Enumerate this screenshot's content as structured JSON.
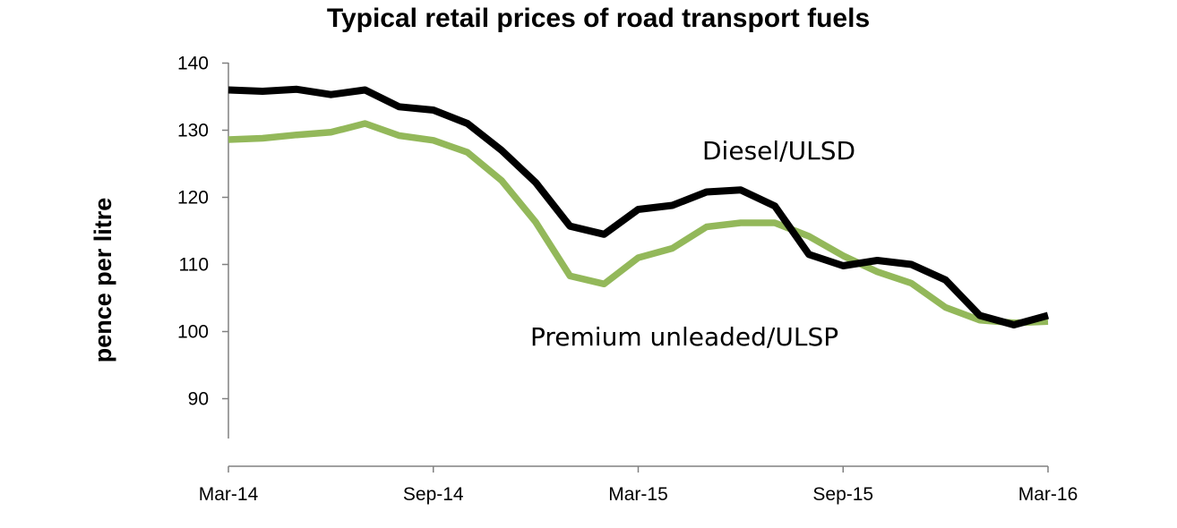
{
  "chart_data": {
    "type": "line",
    "title": "Typical retail prices of road transport fuels",
    "xlabel": "",
    "ylabel": "pence per litre",
    "x": [
      "Mar-14",
      "Apr-14",
      "May-14",
      "Jun-14",
      "Jul-14",
      "Aug-14",
      "Sep-14",
      "Oct-14",
      "Nov-14",
      "Dec-14",
      "Jan-15",
      "Feb-15",
      "Mar-15",
      "Apr-15",
      "May-15",
      "Jun-15",
      "Jul-15",
      "Aug-15",
      "Sep-15",
      "Oct-15",
      "Nov-15",
      "Dec-15",
      "Jan-16",
      "Feb-16",
      "Mar-16"
    ],
    "xticks": [
      "Mar-14",
      "Sep-14",
      "Mar-15",
      "Sep-15",
      "Mar-16"
    ],
    "yticks": [
      90,
      100,
      110,
      120,
      130,
      140
    ],
    "ylim": [
      85,
      140
    ],
    "grid": false,
    "series": [
      {
        "name": "Diesel/ULSD",
        "color": "#000000",
        "values": [
          136.0,
          135.8,
          136.1,
          135.3,
          136.0,
          133.5,
          133.0,
          131.0,
          127.0,
          122.2,
          115.7,
          114.5,
          118.2,
          118.8,
          120.8,
          121.1,
          118.7,
          111.5,
          109.8,
          110.6,
          110.0,
          107.7,
          102.4,
          101.0,
          102.4
        ]
      },
      {
        "name": "Premium unleaded/ULSP",
        "color": "#93B85A",
        "values": [
          128.6,
          128.8,
          129.3,
          129.7,
          131.0,
          129.2,
          128.5,
          126.7,
          122.5,
          116.3,
          108.3,
          107.1,
          111.0,
          112.4,
          115.6,
          116.2,
          116.2,
          114.2,
          111.3,
          108.9,
          107.2,
          103.6,
          101.7,
          101.3,
          101.5
        ]
      }
    ]
  }
}
